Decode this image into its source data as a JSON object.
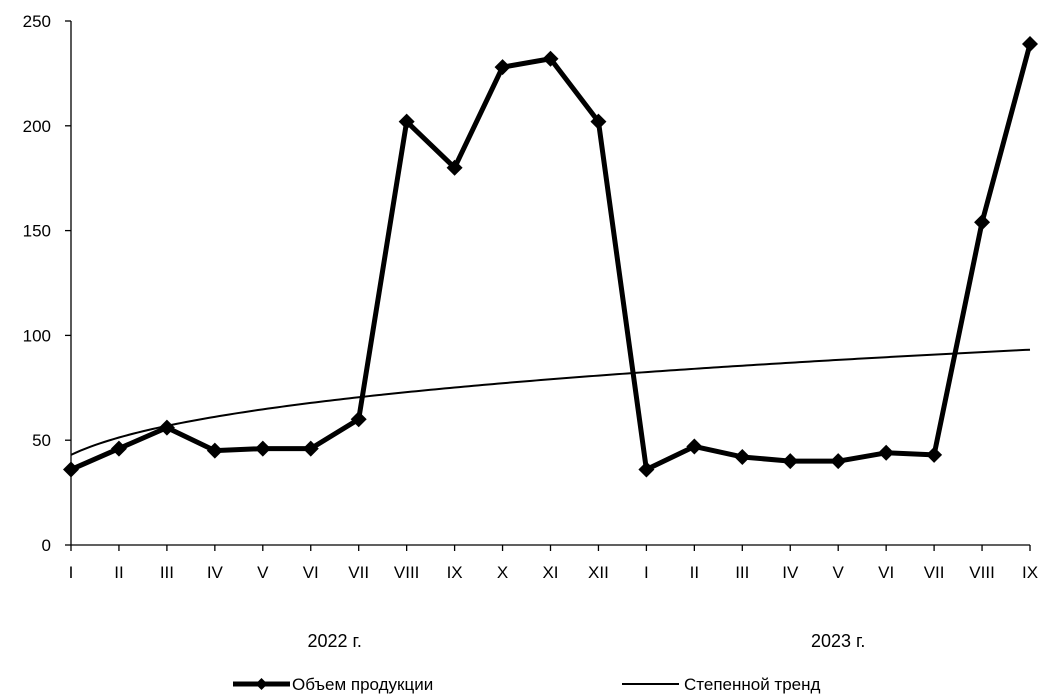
{
  "chart_data": {
    "type": "line",
    "title": "",
    "xlabel": "",
    "ylabel": "",
    "ylim": [
      0,
      250
    ],
    "yticks": [
      "0",
      "50",
      "100",
      "150",
      "200",
      "250"
    ],
    "categories": [
      "I",
      "II",
      "III",
      "IV",
      "V",
      "VI",
      "VII",
      "VIII",
      "IX",
      "X",
      "XI",
      "XII",
      "I",
      "II",
      "III",
      "IV",
      "V",
      "VI",
      "VII",
      "VIII",
      "IX"
    ],
    "groups": [
      {
        "label": "2022 г.",
        "start": 0,
        "end": 11
      },
      {
        "label": "2023 г.",
        "start": 12,
        "end": 20
      }
    ],
    "series": [
      {
        "name": "Объем продукции",
        "values": [
          36,
          46,
          56,
          45,
          46,
          46,
          60,
          202,
          180,
          228,
          232,
          202,
          36,
          47,
          42,
          40,
          40,
          44,
          43,
          154,
          239
        ],
        "color": "#000000",
        "marker": "diamond"
      },
      {
        "name": "Степенной тренд",
        "type": "power-trend",
        "coefficient": 43,
        "exponent": 0.254,
        "color": "#000000"
      }
    ],
    "grid": false,
    "legend": "bottom"
  }
}
